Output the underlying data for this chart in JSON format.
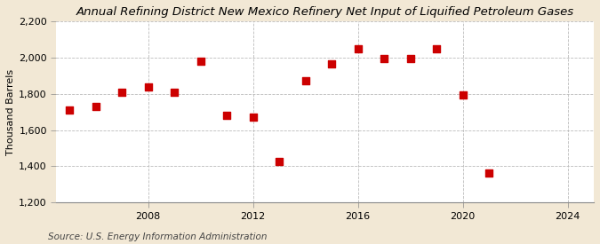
{
  "title": "Annual Refining District New Mexico Refinery Net Input of Liquified Petroleum Gases",
  "ylabel": "Thousand Barrels",
  "source": "Source: U.S. Energy Information Administration",
  "background_color": "#f2e8d5",
  "plot_background": "#ffffff",
  "years": [
    2005,
    2006,
    2007,
    2008,
    2009,
    2010,
    2011,
    2012,
    2013,
    2014,
    2015,
    2016,
    2017,
    2018,
    2019,
    2020,
    2021
  ],
  "values": [
    1710,
    1730,
    1810,
    1840,
    1810,
    1980,
    1680,
    1670,
    1425,
    1870,
    1965,
    2050,
    1995,
    1995,
    2050,
    1795,
    1365
  ],
  "marker_color": "#cc0000",
  "marker_size": 36,
  "ylim": [
    1200,
    2200
  ],
  "xlim": [
    2004.5,
    2025
  ],
  "yticks": [
    1200,
    1400,
    1600,
    1800,
    2000,
    2200
  ],
  "xticks": [
    2008,
    2012,
    2016,
    2020,
    2024
  ],
  "title_fontsize": 9.5,
  "label_fontsize": 8,
  "tick_fontsize": 8,
  "source_fontsize": 7.5
}
